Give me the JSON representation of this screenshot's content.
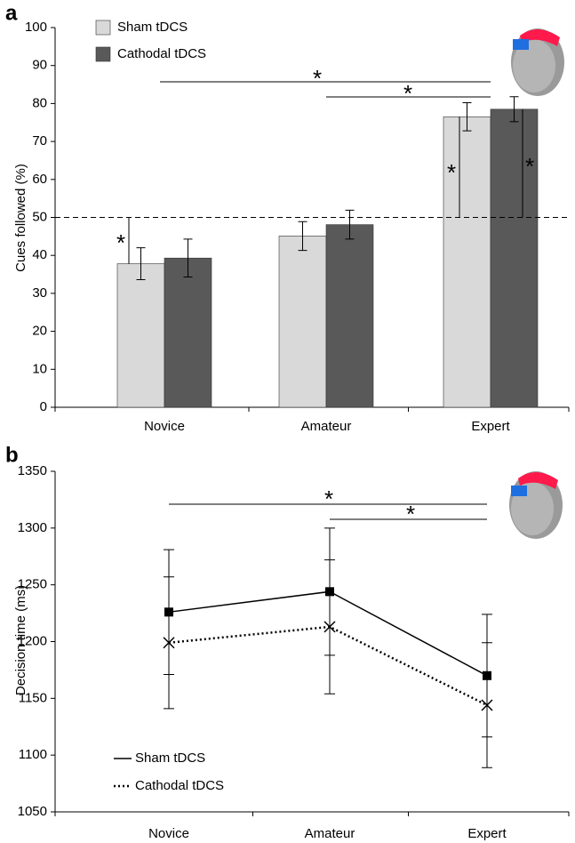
{
  "chart_data": [
    {
      "type": "bar",
      "panel_label": "a",
      "y_label": "Cues followed (%)",
      "categories": [
        "Novice",
        "Amateur",
        "Expert"
      ],
      "series": [
        {
          "name": "Sham tDCS",
          "color": "#d9d9d9",
          "values": [
            37.8,
            45.1,
            76.5
          ],
          "errors": [
            4.2,
            3.8,
            3.7
          ]
        },
        {
          "name": "Cathodal tDCS",
          "color": "#595959",
          "values": [
            39.3,
            48.1,
            78.5
          ],
          "errors": [
            5.0,
            3.8,
            3.3
          ]
        }
      ],
      "ylim": [
        0,
        100
      ],
      "yticks": [
        0,
        10,
        20,
        30,
        40,
        50,
        60,
        70,
        80,
        90,
        100
      ],
      "reference_line": 50,
      "legend": "top-left",
      "annotations": [
        "*",
        "*",
        "*",
        "*",
        "*"
      ]
    },
    {
      "type": "line",
      "panel_label": "b",
      "y_label": "Decision time (ms)",
      "categories": [
        "Novice",
        "Amateur",
        "Expert"
      ],
      "series": [
        {
          "name": "Sham tDCS",
          "color": "#000000",
          "marker": "square",
          "dash": "solid",
          "values": [
            1226,
            1244,
            1170
          ],
          "errors": [
            55,
            56,
            54
          ]
        },
        {
          "name": "Cathodal tDCS",
          "color": "#000000",
          "marker": "x",
          "dash": "dotted",
          "values": [
            1199,
            1213,
            1144
          ],
          "errors": [
            58,
            59,
            55
          ]
        }
      ],
      "ylim": [
        1050,
        1350
      ],
      "yticks": [
        1050,
        1100,
        1150,
        1200,
        1250,
        1300,
        1350
      ],
      "legend": "bottom-left",
      "annotations": [
        "*",
        "*"
      ]
    }
  ]
}
